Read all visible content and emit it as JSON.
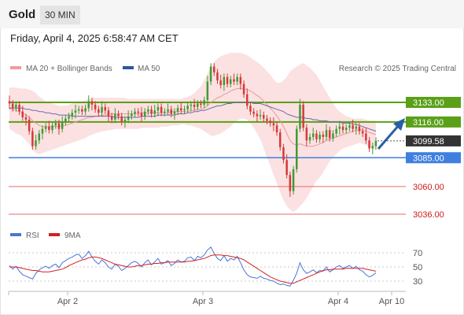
{
  "header": {
    "title": "Gold",
    "timeframe": "30 MIN",
    "datetime": "Friday, April 4, 2025 6:58:47 AM CET"
  },
  "legend": {
    "ma20": "MA 20 + Bollinger Bands",
    "ma50": "MA 50",
    "credit": "Research © 2025 Trading Central",
    "rsi": "RSI",
    "ma9": "9MA"
  },
  "colors": {
    "bull": "#3f9a35",
    "bear": "#d43a3a",
    "band": "#fadcdc",
    "ma20": "#e89a9a",
    "ma50": "#6a6ab0",
    "resistance": "#5aa018",
    "support": "#3f7fe0",
    "red_level": "#e66a6a",
    "current": "#333333",
    "rsi": "#4a74d8",
    "ma9": "#d42020",
    "arrow": "#2a5ea8"
  },
  "chart_data": [
    {
      "type": "candlestick",
      "title": "",
      "x_ticks": [
        "Apr 2",
        "Apr 3",
        "Apr 4",
        "Apr 10"
      ],
      "ylim": [
        3030,
        3185
      ],
      "levels": [
        {
          "value": 3133.0,
          "label": "3133.00",
          "kind": "resistance"
        },
        {
          "value": 3116.0,
          "label": "3116.00",
          "kind": "resistance"
        },
        {
          "value": 3099.58,
          "label": "3099.58",
          "kind": "current"
        },
        {
          "value": 3085.0,
          "label": "3085.00",
          "kind": "support"
        },
        {
          "value": 3060.0,
          "label": "3060.00",
          "kind": "red"
        },
        {
          "value": 3036.0,
          "label": "3036.00",
          "kind": "red"
        }
      ],
      "close": [
        3132,
        3128,
        3131,
        3125,
        3120,
        3118,
        3108,
        3095,
        3100,
        3106,
        3110,
        3112,
        3109,
        3113,
        3115,
        3110,
        3116,
        3119,
        3121,
        3124,
        3126,
        3127,
        3125,
        3128,
        3134,
        3131,
        3127,
        3124,
        3129,
        3126,
        3121,
        3118,
        3123,
        3121,
        3116,
        3118,
        3121,
        3123,
        3125,
        3124,
        3121,
        3125,
        3127,
        3123,
        3126,
        3129,
        3124,
        3125,
        3127,
        3123,
        3125,
        3128,
        3126,
        3127,
        3130,
        3131,
        3129,
        3132,
        3131,
        3135,
        3151,
        3164,
        3159,
        3152,
        3148,
        3155,
        3149,
        3153,
        3151,
        3155,
        3149,
        3140,
        3130,
        3125,
        3123,
        3121,
        3122,
        3119,
        3117,
        3115,
        3113,
        3107,
        3094,
        3083,
        3070,
        3056,
        3075,
        3110,
        3131,
        3111,
        3100,
        3103,
        3106,
        3101,
        3105,
        3103,
        3109,
        3102,
        3106,
        3110,
        3112,
        3109,
        3111,
        3113,
        3110,
        3112,
        3108,
        3106,
        3100,
        3093,
        3095,
        3099.6
      ],
      "ma20": [
        3128,
        3127,
        3126,
        3125,
        3124,
        3122,
        3120,
        3117,
        3115,
        3113,
        3112,
        3112,
        3112,
        3112,
        3112,
        3112,
        3113,
        3113,
        3114,
        3115,
        3116,
        3117,
        3118,
        3119,
        3120,
        3120,
        3121,
        3121,
        3122,
        3122,
        3123,
        3123,
        3123,
        3123,
        3123,
        3123,
        3123,
        3123,
        3123,
        3123,
        3124,
        3124,
        3124,
        3124,
        3124,
        3124,
        3124,
        3124,
        3124,
        3125,
        3125,
        3125,
        3125,
        3125,
        3125,
        3126,
        3126,
        3127,
        3127,
        3128,
        3130,
        3133,
        3135,
        3137,
        3138,
        3140,
        3141,
        3143,
        3144,
        3145,
        3145,
        3145,
        3144,
        3143,
        3141,
        3139,
        3137,
        3134,
        3131,
        3128,
        3125,
        3121,
        3117,
        3112,
        3106,
        3100,
        3097,
        3096,
        3097,
        3096,
        3095,
        3095,
        3095,
        3096,
        3097,
        3098,
        3100,
        3101,
        3102,
        3103,
        3104,
        3105,
        3106,
        3107,
        3108,
        3109,
        3109,
        3109,
        3108,
        3107,
        3106,
        3105
      ],
      "bb_upper": [
        3146,
        3146,
        3146,
        3145,
        3145,
        3145,
        3144,
        3143,
        3141,
        3138,
        3136,
        3134,
        3133,
        3132,
        3131,
        3130,
        3130,
        3130,
        3131,
        3132,
        3133,
        3134,
        3134,
        3135,
        3136,
        3137,
        3137,
        3137,
        3137,
        3137,
        3137,
        3137,
        3137,
        3137,
        3137,
        3137,
        3136,
        3136,
        3136,
        3136,
        3136,
        3136,
        3136,
        3136,
        3136,
        3136,
        3136,
        3136,
        3136,
        3136,
        3136,
        3136,
        3136,
        3137,
        3138,
        3139,
        3141,
        3144,
        3147,
        3152,
        3158,
        3164,
        3168,
        3171,
        3173,
        3174,
        3175,
        3176,
        3176,
        3176,
        3176,
        3175,
        3174,
        3172,
        3170,
        3168,
        3166,
        3163,
        3160,
        3157,
        3153,
        3150,
        3150,
        3152,
        3155,
        3160,
        3162,
        3164,
        3166,
        3167,
        3165,
        3163,
        3160,
        3157,
        3152,
        3147,
        3142,
        3137,
        3133,
        3128,
        3125,
        3123,
        3121,
        3120,
        3119,
        3119,
        3119,
        3119,
        3118,
        3117,
        3117,
        3117
      ],
      "bb_lower": [
        3110,
        3108,
        3106,
        3105,
        3103,
        3100,
        3097,
        3092,
        3089,
        3088,
        3089,
        3090,
        3091,
        3092,
        3093,
        3094,
        3095,
        3096,
        3097,
        3098,
        3099,
        3100,
        3101,
        3102,
        3104,
        3105,
        3106,
        3107,
        3108,
        3108,
        3109,
        3109,
        3110,
        3110,
        3110,
        3110,
        3110,
        3110,
        3110,
        3110,
        3111,
        3111,
        3111,
        3111,
        3111,
        3111,
        3112,
        3112,
        3112,
        3113,
        3113,
        3113,
        3114,
        3114,
        3113,
        3113,
        3112,
        3111,
        3110,
        3108,
        3106,
        3104,
        3104,
        3105,
        3106,
        3108,
        3110,
        3112,
        3115,
        3117,
        3119,
        3119,
        3118,
        3115,
        3111,
        3106,
        3101,
        3093,
        3085,
        3078,
        3070,
        3063,
        3055,
        3048,
        3043,
        3040,
        3038,
        3040,
        3043,
        3046,
        3050,
        3055,
        3060,
        3065,
        3068,
        3072,
        3077,
        3082,
        3085,
        3088,
        3091,
        3093,
        3094,
        3095,
        3096,
        3097,
        3098,
        3097,
        3096,
        3094,
        3093,
        3092
      ],
      "ma50": [
        3128,
        3128,
        3128,
        3128,
        3128,
        3127,
        3127,
        3126,
        3126,
        3125,
        3125,
        3124,
        3124,
        3123,
        3123,
        3122,
        3122,
        3122,
        3122,
        3121,
        3121,
        3121,
        3121,
        3121,
        3121,
        3121,
        3121,
        3121,
        3121,
        3121,
        3121,
        3121,
        3120,
        3120,
        3120,
        3120,
        3120,
        3120,
        3120,
        3120,
        3121,
        3121,
        3121,
        3121,
        3121,
        3122,
        3122,
        3122,
        3122,
        3122,
        3122,
        3123,
        3123,
        3123,
        3124,
        3124,
        3125,
        3125,
        3126,
        3126,
        3127,
        3128,
        3129,
        3130,
        3130,
        3131,
        3132,
        3132,
        3133,
        3133,
        3133,
        3133,
        3133,
        3133,
        3132,
        3132,
        3132,
        3131,
        3130,
        3129,
        3128,
        3127,
        3126,
        3125,
        3123,
        3122,
        3121,
        3120,
        3120,
        3120,
        3119,
        3119,
        3118,
        3118,
        3117,
        3117,
        3117,
        3116,
        3116,
        3116,
        3116,
        3115,
        3115,
        3115,
        3114,
        3114,
        3113,
        3112,
        3111,
        3110,
        3109,
        3108
      ]
    },
    {
      "type": "line",
      "title": "",
      "ylim": [
        20,
        80
      ],
      "y_ticks": [
        70,
        50,
        30
      ],
      "series": [
        {
          "name": "RSI",
          "values": [
            52,
            47,
            51,
            44,
            39,
            37,
            35,
            33,
            41,
            46,
            49,
            51,
            48,
            52,
            54,
            49,
            56,
            59,
            62,
            64,
            67,
            68,
            62,
            66,
            72,
            64,
            58,
            54,
            60,
            56,
            50,
            47,
            54,
            51,
            45,
            48,
            52,
            56,
            58,
            55,
            50,
            56,
            60,
            53,
            57,
            62,
            54,
            56,
            59,
            52,
            55,
            60,
            57,
            58,
            63,
            64,
            59,
            65,
            63,
            67,
            74,
            78,
            69,
            62,
            59,
            66,
            58,
            62,
            60,
            65,
            56,
            46,
            39,
            36,
            35,
            34,
            37,
            34,
            33,
            31,
            30,
            27,
            25,
            26,
            24,
            23,
            31,
            41,
            56,
            46,
            41,
            43,
            46,
            42,
            45,
            44,
            50,
            43,
            46,
            50,
            52,
            48,
            50,
            52,
            48,
            51,
            46,
            44,
            39,
            36,
            38,
            42
          ]
        },
        {
          "name": "9MA",
          "values": [
            50,
            50,
            50,
            49,
            48,
            47,
            46,
            45,
            45,
            44,
            43,
            43,
            43,
            44,
            45,
            46,
            47,
            49,
            52,
            54,
            56,
            58,
            60,
            61,
            63,
            64,
            64,
            63,
            62,
            60,
            58,
            56,
            54,
            53,
            52,
            51,
            50,
            50,
            51,
            52,
            52,
            53,
            54,
            54,
            55,
            55,
            56,
            56,
            57,
            57,
            57,
            57,
            57,
            57,
            58,
            58,
            59,
            60,
            61,
            62,
            64,
            66,
            67,
            67,
            67,
            66,
            66,
            65,
            64,
            63,
            62,
            60,
            57,
            54,
            51,
            48,
            45,
            42,
            39,
            36,
            34,
            32,
            30,
            29,
            28,
            27,
            27,
            29,
            31,
            33,
            35,
            37,
            39,
            41,
            43,
            45,
            46,
            46,
            47,
            47,
            47,
            47,
            48,
            48,
            48,
            48,
            48,
            48,
            47,
            46,
            45,
            44
          ]
        }
      ]
    }
  ]
}
